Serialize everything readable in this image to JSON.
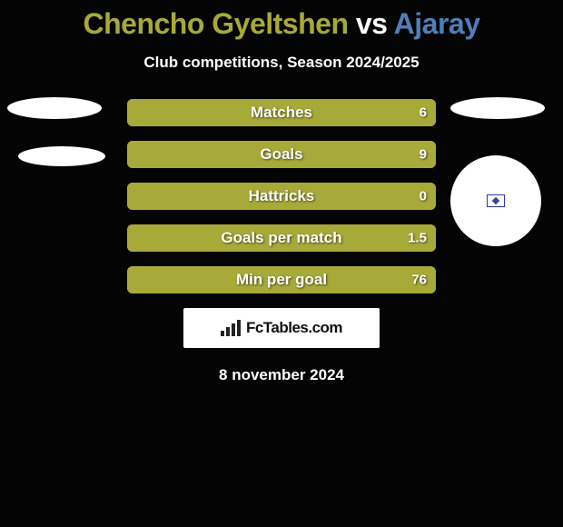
{
  "background_color": "#040404",
  "title": {
    "player_a": "Chencho Gyeltshen",
    "vs": "vs",
    "player_b": "Ajaray",
    "color_a": "#a7a939",
    "color_vs": "#ffffff",
    "color_b": "#4f7fbb",
    "fontsize": 32
  },
  "subtitle": {
    "text": "Club competitions, Season 2024/2025",
    "color": "#ffffff",
    "fontsize": 17
  },
  "avatars": {
    "left_ellipse_color": "#ffffff",
    "right_ellipse_color": "#ffffff",
    "right_circle_color": "#ffffff",
    "flag_border": "#2b4aa0"
  },
  "bars": {
    "track_color": "#a7a939",
    "fill_color": "#a7a939",
    "border_radius": 6,
    "height": 30,
    "gap": 16,
    "label_color": "#ffffff",
    "label_fontsize": 17,
    "value_fontsize": 15,
    "items": [
      {
        "label": "Matches",
        "left_value": "",
        "right_value": "6",
        "fill_side": "right",
        "fill_pct": 100
      },
      {
        "label": "Goals",
        "left_value": "",
        "right_value": "9",
        "fill_side": "right",
        "fill_pct": 100
      },
      {
        "label": "Hattricks",
        "left_value": "",
        "right_value": "0",
        "fill_side": "right",
        "fill_pct": 100
      },
      {
        "label": "Goals per match",
        "left_value": "",
        "right_value": "1.5",
        "fill_side": "right",
        "fill_pct": 100
      },
      {
        "label": "Min per goal",
        "left_value": "",
        "right_value": "76",
        "fill_side": "right",
        "fill_pct": 100
      }
    ]
  },
  "logo": {
    "text": "FcTables.com",
    "background": "#ffffff",
    "bar_color": "#222222",
    "text_color": "#111111"
  },
  "date": {
    "text": "8 november 2024",
    "color": "#ffffff",
    "fontsize": 17
  }
}
